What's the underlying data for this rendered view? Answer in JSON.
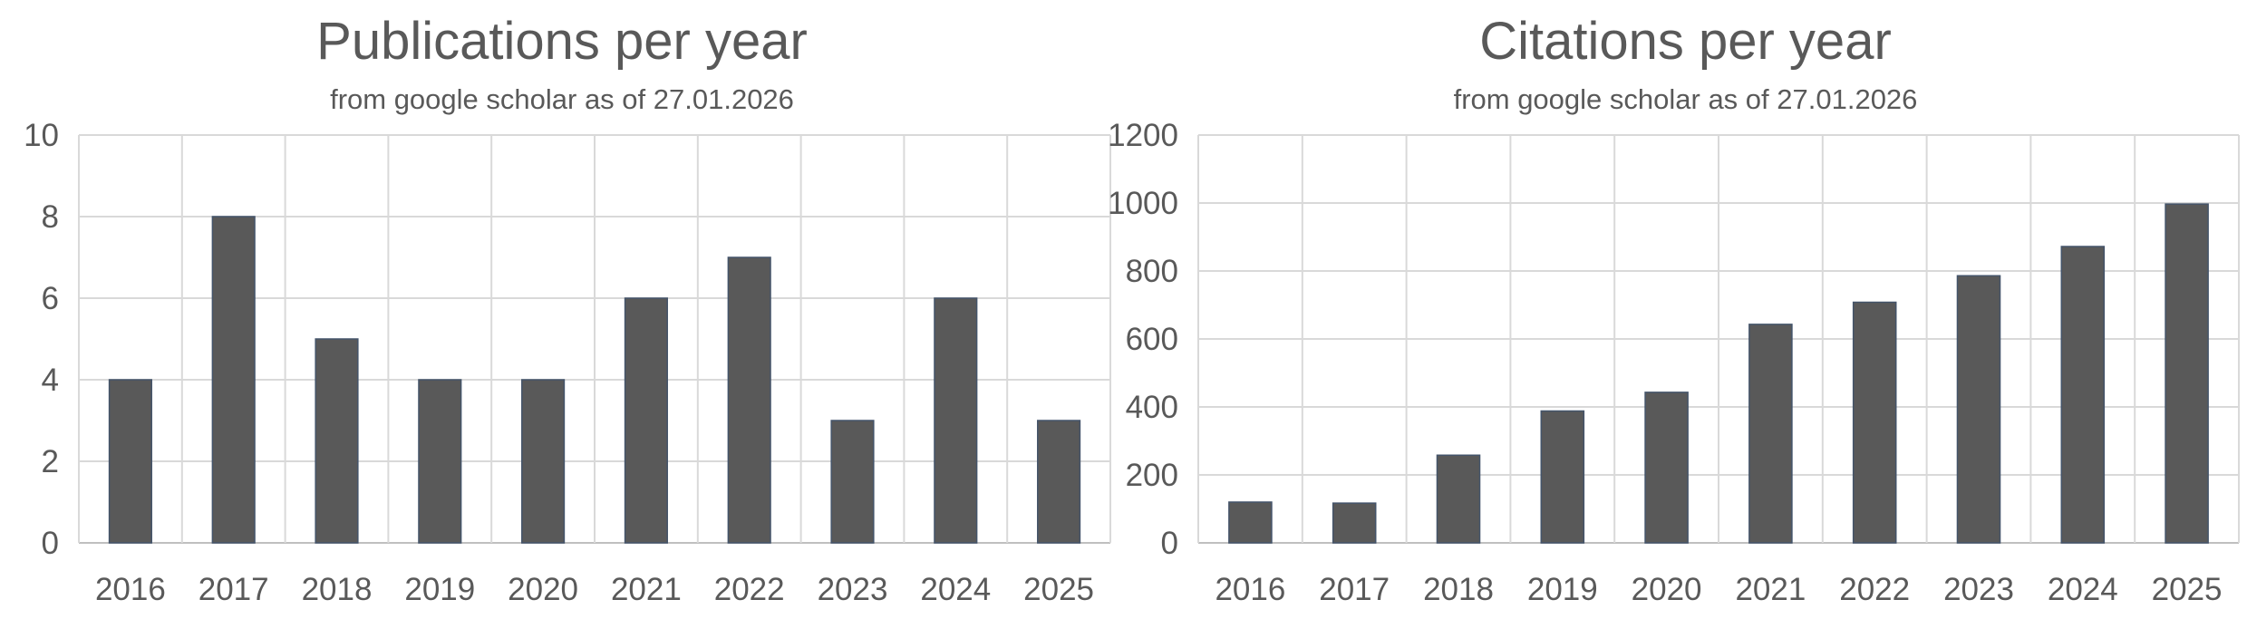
{
  "chart_data": [
    {
      "type": "bar",
      "title": "Publications per year",
      "subtitle": "from google scholar as of 27.01.2026",
      "categories": [
        "2016",
        "2017",
        "2018",
        "2019",
        "2020",
        "2021",
        "2022",
        "2023",
        "2024",
        "2025"
      ],
      "values": [
        4,
        8,
        5,
        4,
        4,
        6,
        7,
        3,
        6,
        3
      ],
      "xlabel": "",
      "ylabel": "",
      "ylim": [
        0,
        10
      ],
      "yticks": [
        0,
        2,
        4,
        6,
        8,
        10
      ],
      "grid": true,
      "legend": "none",
      "bar_color": "#595959"
    },
    {
      "type": "bar",
      "title": "Citations per year",
      "subtitle": "from google scholar as of 27.01.2026",
      "categories": [
        "2016",
        "2017",
        "2018",
        "2019",
        "2020",
        "2021",
        "2022",
        "2023",
        "2024",
        "2025"
      ],
      "values": [
        120,
        117,
        258,
        388,
        443,
        643,
        708,
        786,
        872,
        997
      ],
      "xlabel": "",
      "ylabel": "",
      "ylim": [
        0,
        1200
      ],
      "yticks": [
        0,
        200,
        400,
        600,
        800,
        1000,
        1200
      ],
      "grid": true,
      "legend": "none",
      "bar_color": "#595959"
    }
  ]
}
